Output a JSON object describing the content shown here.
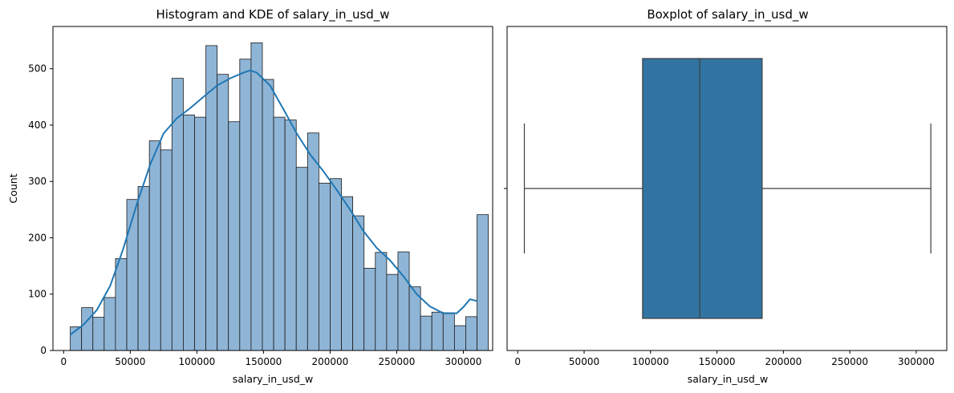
{
  "chart_data": [
    {
      "type": "bar",
      "title": "Histogram and KDE of salary_in_usd_w",
      "xlabel": "salary_in_usd_w",
      "ylabel": "Count",
      "xlim": [
        -8000,
        322000
      ],
      "ylim": [
        0,
        575
      ],
      "xticks": [
        0,
        50000,
        100000,
        150000,
        200000,
        250000,
        300000
      ],
      "xtick_labels": [
        "0",
        "50000",
        "100000",
        "150000",
        "200000",
        "250000",
        "300000"
      ],
      "yticks": [
        0,
        100,
        200,
        300,
        400,
        500
      ],
      "ytick_labels": [
        "0",
        "100",
        "200",
        "300",
        "400",
        "500"
      ],
      "bin_start": 5000,
      "bin_width": 8480,
      "values": [
        42,
        76,
        59,
        94,
        163,
        268,
        291,
        372,
        356,
        483,
        418,
        414,
        541,
        490,
        406,
        517,
        546,
        481,
        414,
        409,
        325,
        386,
        297,
        305,
        273,
        239,
        146,
        174,
        135,
        175,
        113,
        61,
        68,
        67,
        44,
        60,
        241
      ],
      "kde": {
        "name": "KDE",
        "x": [
          5000,
          15000,
          25000,
          35000,
          45000,
          55000,
          65000,
          75000,
          85000,
          95000,
          105000,
          115000,
          125000,
          135000,
          140000,
          145000,
          155000,
          165000,
          175000,
          185000,
          195000,
          205000,
          215000,
          225000,
          235000,
          245000,
          255000,
          265000,
          275000,
          285000,
          295000,
          300000,
          305000,
          310000
        ],
        "y": [
          28,
          46,
          72,
          115,
          182,
          260,
          330,
          385,
          412,
          430,
          450,
          470,
          483,
          493,
          497,
          493,
          470,
          428,
          385,
          348,
          318,
          285,
          250,
          212,
          182,
          160,
          132,
          100,
          78,
          66,
          66,
          77,
          91,
          88
        ]
      },
      "colors": {
        "bar_fill": "#8fb5d6",
        "bar_edge": "#1a1a1a",
        "kde_line": "#1f77b4"
      },
      "grid": false,
      "legend": "none"
    },
    {
      "type": "box",
      "title": "Boxplot of salary_in_usd_w",
      "xlabel": "salary_in_usd_w",
      "xlim": [
        -8000,
        323000
      ],
      "xticks": [
        0,
        50000,
        100000,
        150000,
        200000,
        250000,
        300000
      ],
      "xtick_labels": [
        "0",
        "50000",
        "100000",
        "150000",
        "200000",
        "250000",
        "300000"
      ],
      "whisker_low": 5000,
      "q1": 94000,
      "median": 137000,
      "q3": 184000,
      "whisker_high": 311000,
      "colors": {
        "box_fill": "#3274a1",
        "lines": "#3d3d3d"
      },
      "grid": false
    }
  ]
}
